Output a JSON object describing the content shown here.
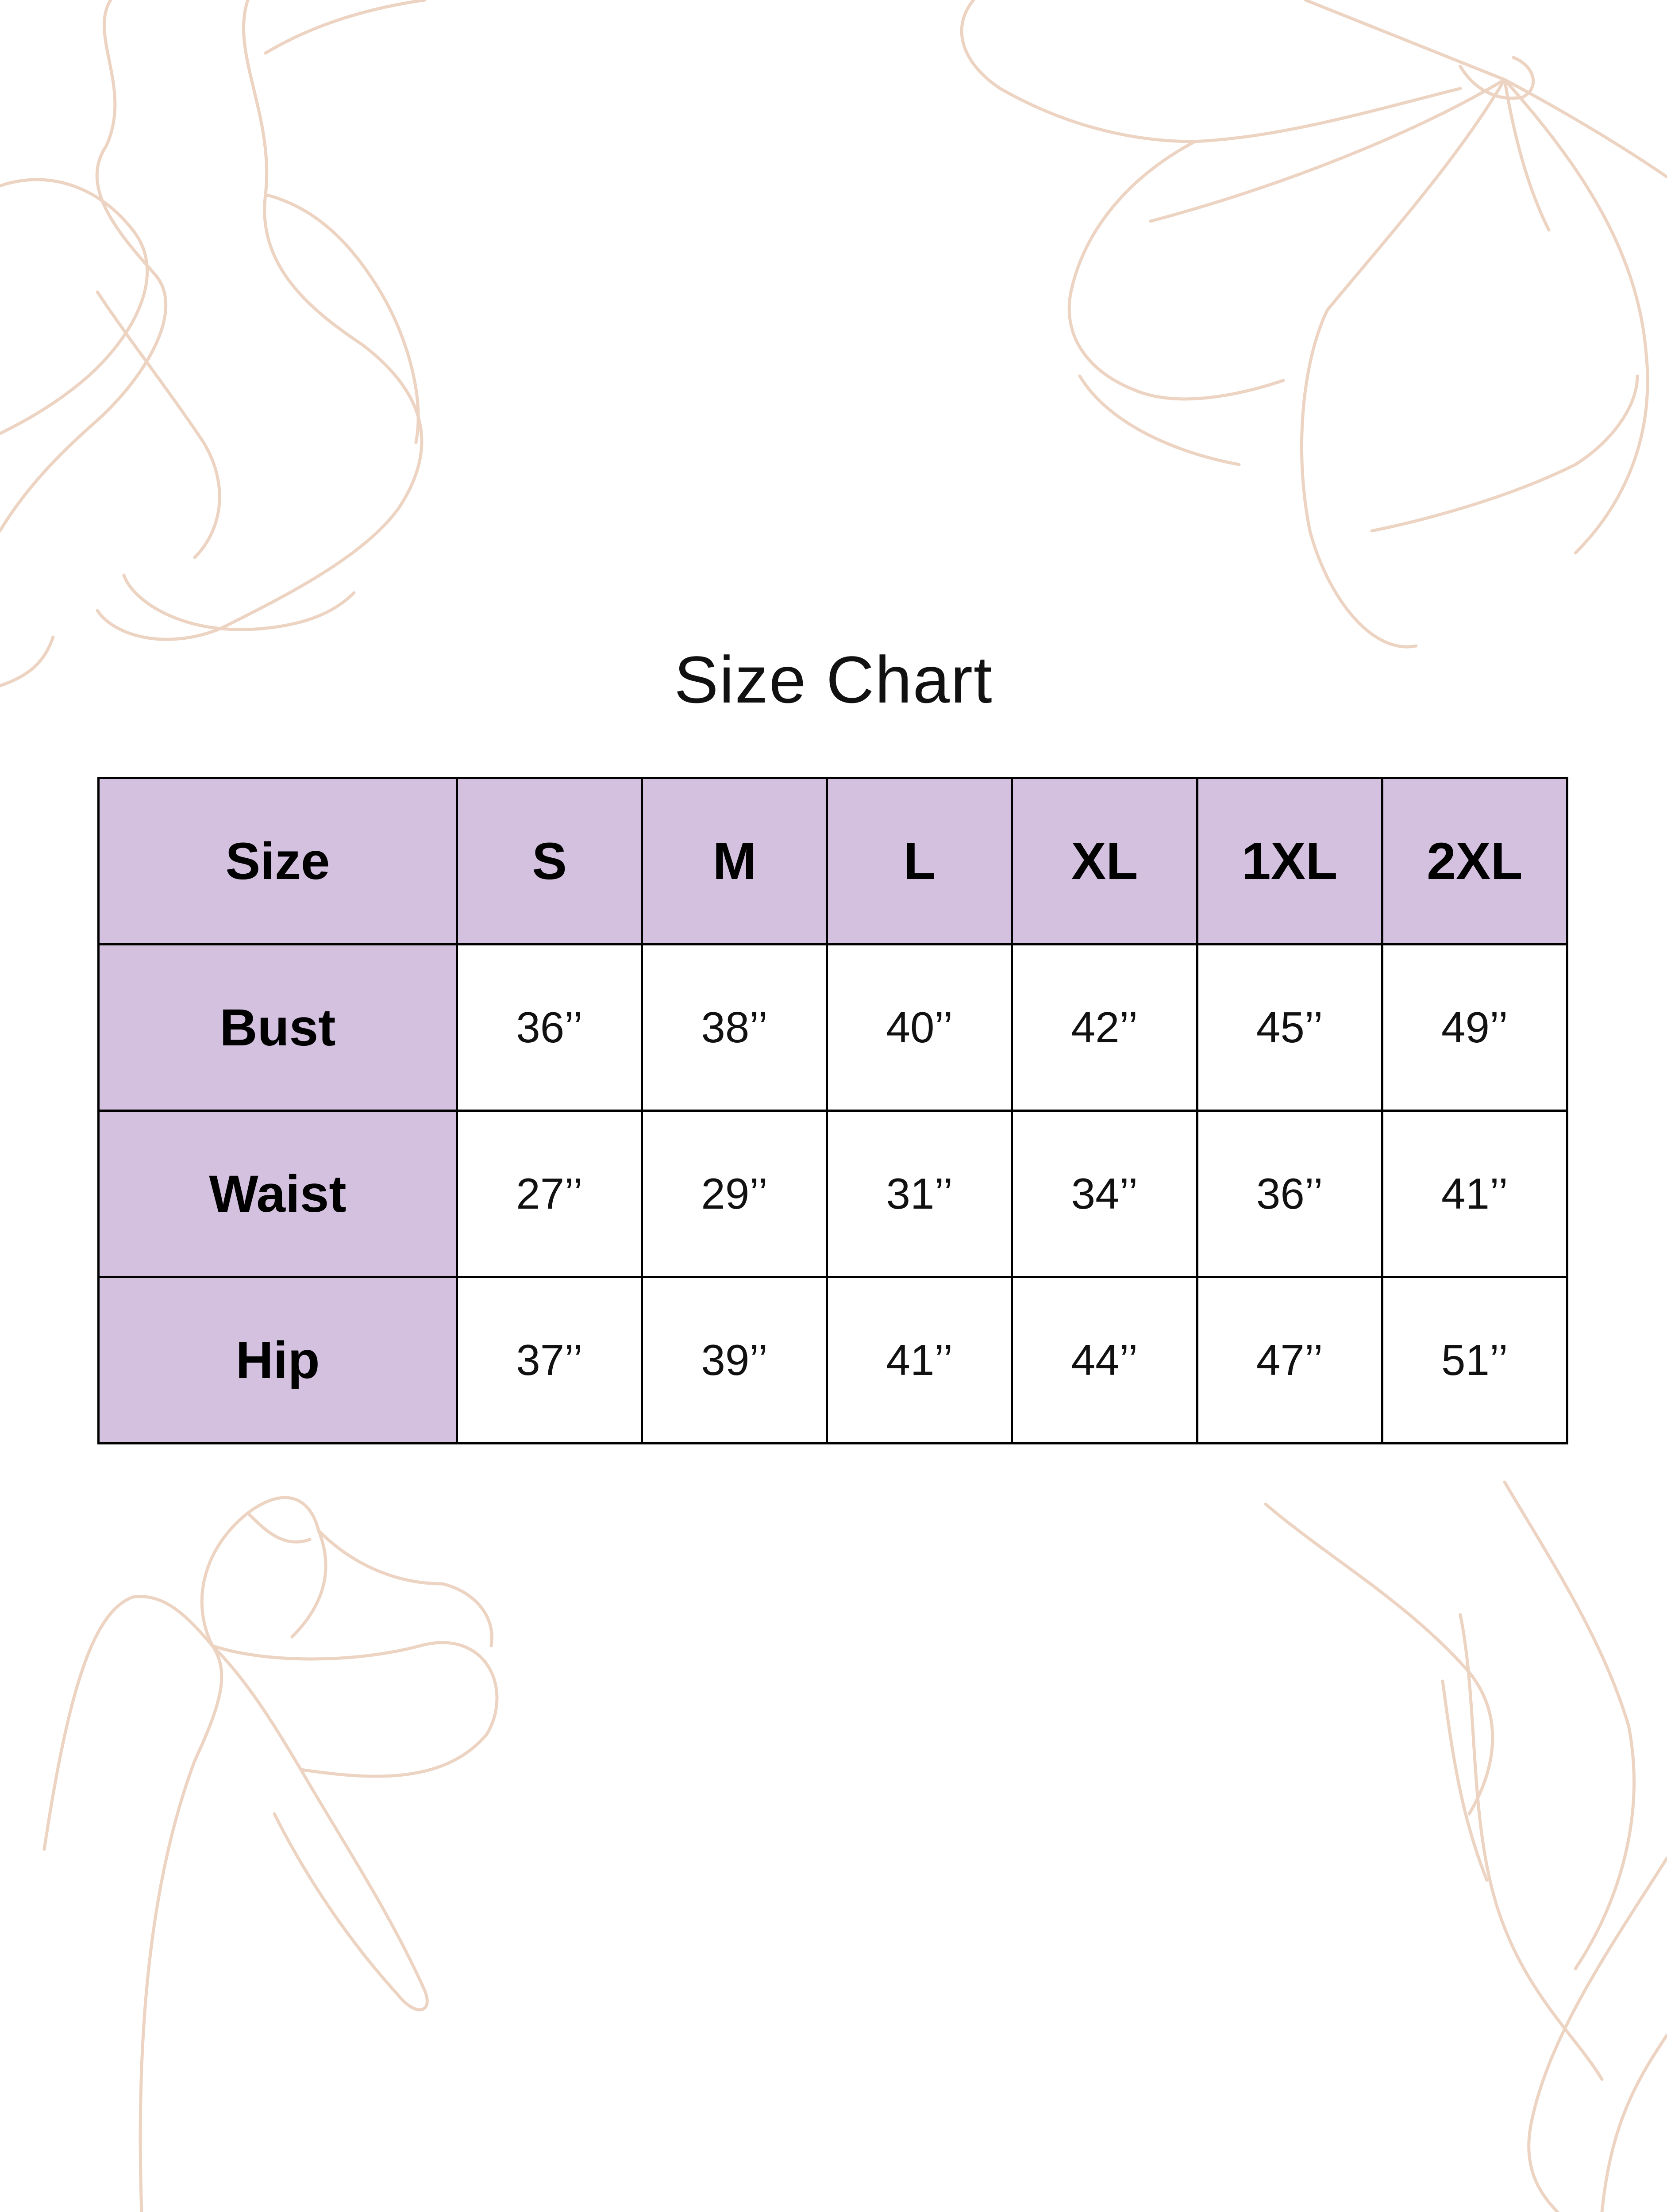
{
  "title": "Size Chart",
  "colors": {
    "header_fill": "#d3c1df",
    "border": "#000000",
    "floral_lines": "#ecd3c2"
  },
  "decoration": "floral-line-art",
  "table": {
    "header": [
      "Size",
      "S",
      "M",
      "L",
      "XL",
      "1XL",
      "2XL"
    ],
    "rows": [
      {
        "label": "Bust",
        "values": [
          "36’’",
          "38’’",
          "40’’",
          "42’’",
          "45’’",
          "49’’"
        ]
      },
      {
        "label": "Waist",
        "values": [
          "27’’",
          "29’’",
          "31’’",
          "34’’",
          "36’’",
          "41’’"
        ]
      },
      {
        "label": "Hip",
        "values": [
          "37’’",
          "39’’",
          "41’’",
          "44’’",
          "47’’",
          "51’’"
        ]
      }
    ]
  }
}
